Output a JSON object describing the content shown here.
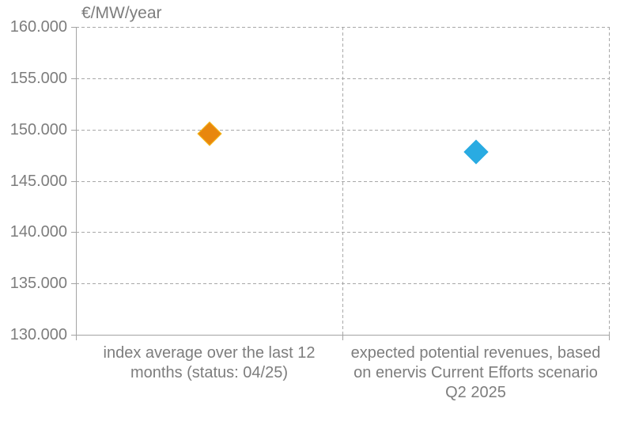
{
  "chart": {
    "background": "#ffffff",
    "text_color": "#7d7d7d",
    "grid_color": "#a8a8a8",
    "axis_color": "#a3a3a3"
  },
  "chart_data": {
    "type": "scatter",
    "title": "€/MW/year",
    "xlabel": "",
    "ylabel": "€/MW/year",
    "ylim": [
      130000,
      160000
    ],
    "ytick_interval": 5000,
    "yticks": [
      {
        "value": 160000,
        "label": "160.000"
      },
      {
        "value": 155000,
        "label": "155.000"
      },
      {
        "value": 150000,
        "label": "150.000"
      },
      {
        "value": 145000,
        "label": "145.000"
      },
      {
        "value": 140000,
        "label": "140.000"
      },
      {
        "value": 135000,
        "label": "135.000"
      },
      {
        "value": 130000,
        "label": "130.000"
      }
    ],
    "grid": "horizontal dashed gridlines at every 5.000 step; dashed vertical separators at category boundaries; solid bottom and left axis lines",
    "legend_position": "none",
    "categories": [
      "index average over the last 12 months (status: 04/25)",
      "expected potential revenues, based on enervis Current Efforts scenario Q2 2025"
    ],
    "category_lines": [
      [
        "index average over the last 12",
        "months (status: 04/25)"
      ],
      [
        "expected potential revenues, based",
        "on enervis Current Efforts scenario",
        "Q2 2025"
      ]
    ],
    "points": [
      {
        "category_index": 0,
        "value": 149600,
        "value_display": "≈149.600 €/MW/year",
        "marker": "diamond",
        "color": "#E8870E",
        "border_color": "#F6BB1C",
        "series_name": "index average over the last 12 months (status: 04/25)"
      },
      {
        "category_index": 1,
        "value": 147800,
        "value_display": "≈147.800 €/MW/year",
        "marker": "diamond",
        "color": "#29ABE2",
        "border_color": "#29ABE2",
        "series_name": "expected potential revenues, based on enervis Current Efforts scenario Q2 2025"
      }
    ]
  }
}
